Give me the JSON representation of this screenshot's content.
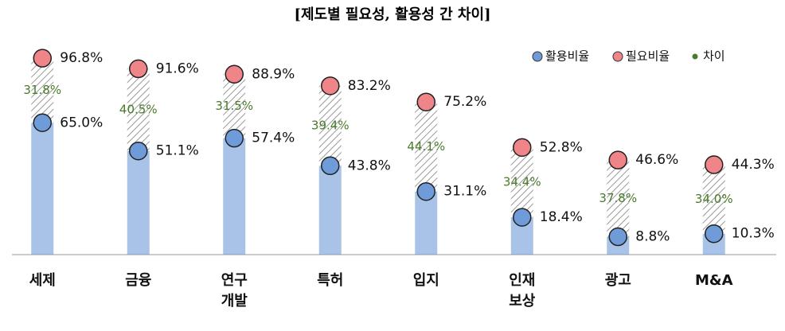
{
  "chart_data": {
    "type": "dot-range",
    "title": "[제도별 필요성, 활용성 간 차이]",
    "categories": [
      "세제",
      "금융",
      "연구\n개발",
      "특허",
      "입지",
      "인재\n보상",
      "광고",
      "M&A"
    ],
    "series": [
      {
        "name": "활용비율",
        "color": "#6f9bd8",
        "values": [
          65.0,
          51.1,
          57.4,
          43.8,
          31.1,
          18.4,
          8.8,
          10.3
        ],
        "value_labels": [
          "65.0%",
          "51.1%",
          "57.4%",
          "43.8%",
          "31.1%",
          "18.4%",
          "8.8%",
          "10.3%"
        ]
      },
      {
        "name": "필요비율",
        "color": "#f08589",
        "values": [
          96.8,
          91.6,
          88.9,
          83.2,
          75.2,
          52.8,
          46.6,
          44.3
        ],
        "value_labels": [
          "96.8%",
          "91.6%",
          "88.9%",
          "83.2%",
          "75.2%",
          "52.8%",
          "46.6%",
          "44.3%"
        ]
      },
      {
        "name": "차이",
        "color": "#4a7a2a",
        "values": [
          31.8,
          40.5,
          31.5,
          39.4,
          44.1,
          34.4,
          37.8,
          34.0
        ],
        "value_labels": [
          "31.8%",
          "40.5%",
          "31.5%",
          "39.4%",
          "44.1%",
          "34.4%",
          "37.8%",
          "34.0%"
        ]
      }
    ],
    "ylim": [
      0,
      100
    ]
  }
}
